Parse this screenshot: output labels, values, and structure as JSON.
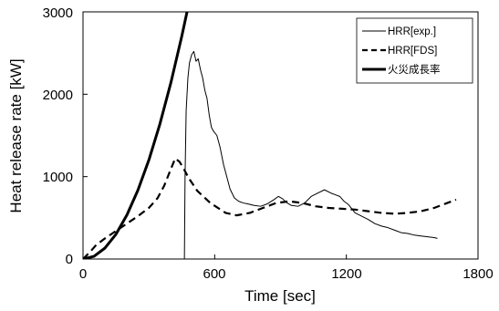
{
  "chart_data": {
    "type": "line",
    "xlabel": "Time [sec]",
    "ylabel": "Heat release rate [kW]",
    "xlim": [
      0,
      1800
    ],
    "ylim": [
      0,
      3000
    ],
    "x_ticks": [
      "0",
      "600",
      "1200",
      "1800"
    ],
    "y_ticks": [
      "0",
      "1000",
      "2000",
      "3000"
    ],
    "grid": false,
    "legend_position": "top-right",
    "series": [
      {
        "name": "HRR[exp.]",
        "style": "thin-solid",
        "color": "#000000",
        "x": [
          0,
          450,
          462,
          465,
          470,
          478,
          485,
          495,
          505,
          515,
          525,
          535,
          545,
          555,
          565,
          575,
          585,
          595,
          610,
          625,
          640,
          655,
          670,
          690,
          710,
          730,
          750,
          780,
          810,
          840,
          870,
          890,
          910,
          930,
          950,
          980,
          1010,
          1040,
          1070,
          1100,
          1130,
          1150,
          1170,
          1190,
          1210,
          1240,
          1270,
          1300,
          1330,
          1360,
          1390,
          1420,
          1450,
          1480,
          1510,
          1540,
          1570,
          1600,
          1615
        ],
        "y": [
          0,
          0,
          0,
          1000,
          1800,
          2200,
          2380,
          2480,
          2520,
          2400,
          2430,
          2300,
          2200,
          2050,
          1950,
          1750,
          1600,
          1550,
          1500,
          1350,
          1150,
          1000,
          850,
          740,
          700,
          680,
          670,
          650,
          640,
          670,
          720,
          760,
          730,
          680,
          650,
          640,
          680,
          760,
          800,
          840,
          800,
          780,
          760,
          700,
          660,
          560,
          520,
          480,
          430,
          400,
          380,
          350,
          320,
          310,
          290,
          280,
          270,
          260,
          250
        ]
      },
      {
        "name": "HRR[FDS]",
        "style": "thick-dashed",
        "color": "#000000",
        "x": [
          0,
          30,
          60,
          100,
          150,
          200,
          250,
          300,
          340,
          370,
          400,
          420,
          440,
          460,
          480,
          520,
          580,
          650,
          700,
          760,
          820,
          880,
          940,
          1000,
          1060,
          1120,
          1180,
          1240,
          1300,
          1360,
          1420,
          1480,
          1540,
          1600,
          1660,
          1700
        ],
        "y": [
          0,
          80,
          170,
          250,
          340,
          430,
          520,
          620,
          740,
          890,
          1090,
          1220,
          1180,
          1090,
          990,
          830,
          680,
          560,
          530,
          560,
          620,
          680,
          700,
          680,
          640,
          620,
          610,
          600,
          580,
          560,
          550,
          560,
          580,
          620,
          680,
          720
        ]
      },
      {
        "name": "火災成長率",
        "style": "thick-solid",
        "color": "#000000",
        "x": [
          0,
          50,
          100,
          150,
          200,
          250,
          300,
          350,
          400,
          450,
          474
        ],
        "y": [
          0,
          33,
          133,
          300,
          534,
          834,
          1201,
          1635,
          2136,
          2703,
          3000
        ]
      }
    ]
  }
}
